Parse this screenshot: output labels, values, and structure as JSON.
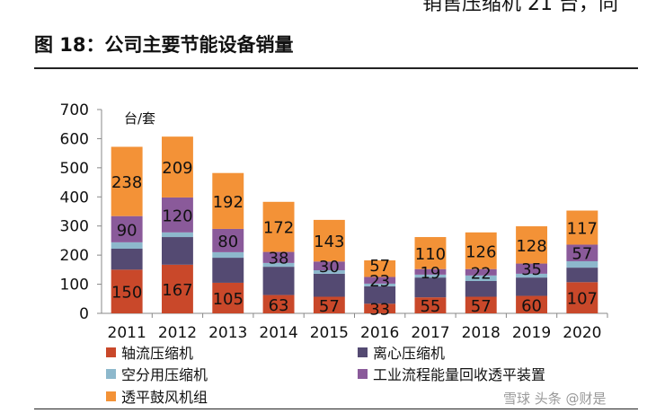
{
  "header": {
    "top_text": "销售压缩机 21 台，同",
    "figure_title": "图 18：公司主要节能设备销量"
  },
  "watermark": "雪球 头条 @财是",
  "chart_data": {
    "type": "bar",
    "stacked": true,
    "title": "",
    "unit_label": "台/套",
    "ylim": [
      0,
      700
    ],
    "yticks": [
      0,
      100,
      200,
      300,
      400,
      500,
      600,
      700
    ],
    "grid": false,
    "legend": "bottom",
    "categories": [
      "2011",
      "2012",
      "2013",
      "2014",
      "2015",
      "2016",
      "2017",
      "2018",
      "2019",
      "2020"
    ],
    "series": [
      {
        "name": "轴流压缩机",
        "color": "#c9482a",
        "labeled": true,
        "values": [
          150,
          167,
          105,
          63,
          57,
          33,
          55,
          57,
          60,
          107
        ]
      },
      {
        "name": "离心压缩机",
        "color": "#544a72",
        "labeled": false,
        "values": [
          72,
          95,
          86,
          97,
          79,
          60,
          68,
          54,
          63,
          50
        ]
      },
      {
        "name": "空分用压缩机",
        "color": "#8db8cc",
        "labeled": false,
        "values": [
          22,
          16,
          19,
          13,
          12,
          9,
          10,
          19,
          13,
          22
        ]
      },
      {
        "name": "工业流程能量回收透平装置",
        "color": "#8a5a9a",
        "labeled": true,
        "values": [
          90,
          120,
          80,
          38,
          30,
          23,
          19,
          22,
          35,
          57
        ]
      },
      {
        "name": "透平鼓风机组",
        "color": "#f39237",
        "labeled": true,
        "values": [
          238,
          209,
          192,
          172,
          143,
          57,
          110,
          126,
          128,
          117
        ]
      }
    ]
  }
}
